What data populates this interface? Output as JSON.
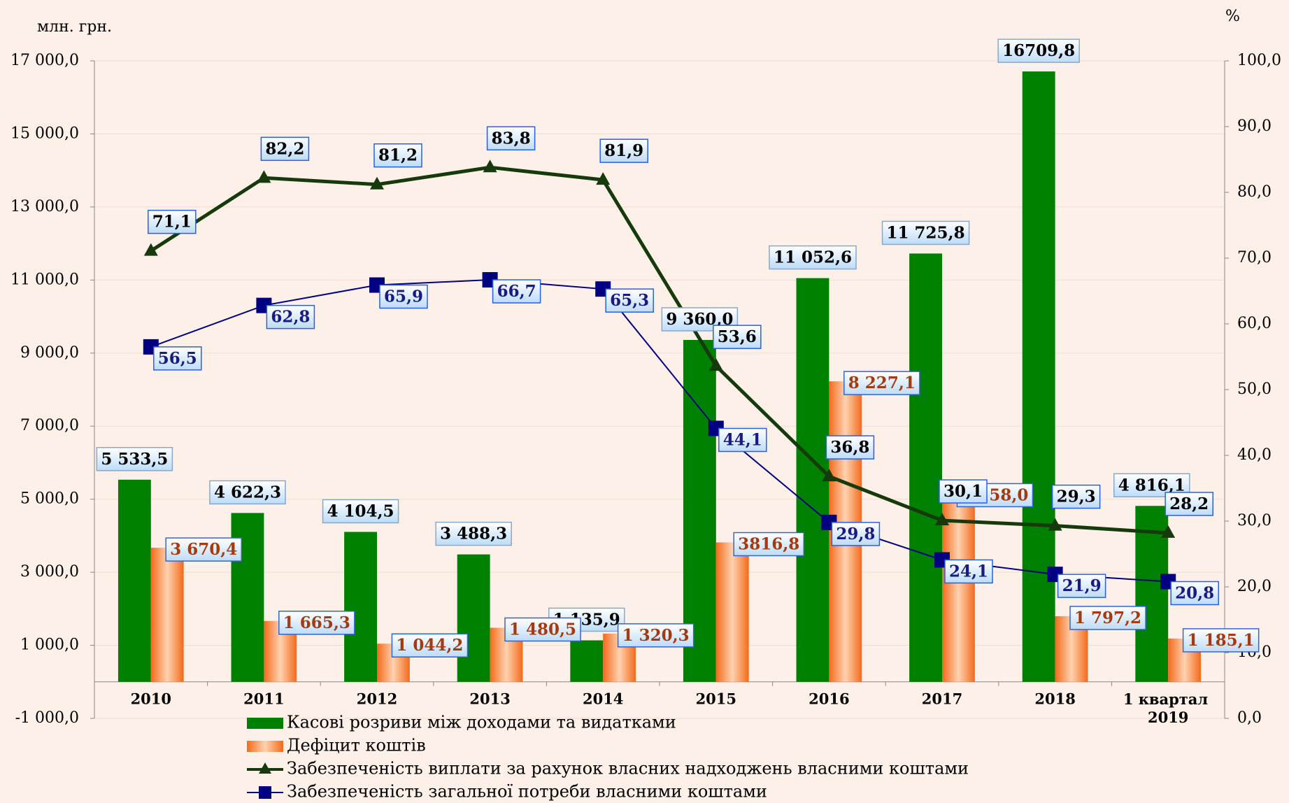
{
  "chart_data": {
    "type": "bar_line",
    "y_label": "млн. грн.",
    "y2_label": "%",
    "categories": [
      "2010",
      "2011",
      "2012",
      "2013",
      "2014",
      "2015",
      "2016",
      "2017",
      "2018",
      "1 квартал 2019"
    ],
    "ylim": [
      -1000,
      17000
    ],
    "yticks": [
      {
        "value": -1000,
        "label": "-1 000,0"
      },
      {
        "value": 1000,
        "label": "1 000,0"
      },
      {
        "value": 3000,
        "label": "3 000,0"
      },
      {
        "value": 5000,
        "label": "5 000,0"
      },
      {
        "value": 7000,
        "label": "7 000,0"
      },
      {
        "value": 9000,
        "label": "9 000,0"
      },
      {
        "value": 11000,
        "label": "11 000,0"
      },
      {
        "value": 13000,
        "label": "13 000,0"
      },
      {
        "value": 15000,
        "label": "15 000,0"
      },
      {
        "value": 17000,
        "label": "17 000,0"
      }
    ],
    "y2lim": [
      0,
      100
    ],
    "y2ticks": [
      {
        "value": 0,
        "label": "0,0"
      },
      {
        "value": 10,
        "label": "10,0"
      },
      {
        "value": 20,
        "label": "20,0"
      },
      {
        "value": 30,
        "label": "30,0"
      },
      {
        "value": 40,
        "label": "40,0"
      },
      {
        "value": 50,
        "label": "50,0"
      },
      {
        "value": 60,
        "label": "60,0"
      },
      {
        "value": 70,
        "label": "70,0"
      },
      {
        "value": 80,
        "label": "80,0"
      },
      {
        "value": 90,
        "label": "90,0"
      },
      {
        "value": 100,
        "label": "100,0"
      }
    ],
    "grid": true,
    "legend": "bottom",
    "series": [
      {
        "name": "Касові розриви між доходами та видатками",
        "type": "bar",
        "color": "#008000",
        "values": [
          5533.5,
          4622.3,
          4104.5,
          3488.3,
          1135.9,
          9360.0,
          11052.6,
          11725.8,
          16709.8,
          4816.1
        ],
        "value_labels": [
          "5 533,5",
          "4 622,3",
          "4 104,5",
          "3 488,3",
          "1 135,9",
          "9 360,0",
          "11 052,6",
          "11 725,8",
          "16709,8",
          "4 816,1"
        ]
      },
      {
        "name": "Дефіцит коштів",
        "type": "bar",
        "color": "#f57a2e",
        "values": [
          3670.4,
          1665.3,
          1044.2,
          1480.5,
          1320.3,
          3816.8,
          8227.1,
          5158.0,
          1797.2,
          1185.1
        ],
        "value_labels": [
          "3 670,4",
          "1 665,3",
          "1 044,2",
          "1 480,5",
          "1 320,3",
          "3816,8",
          "8 227,1",
          "5 158,0",
          "1 797,2",
          "1 185,1"
        ]
      },
      {
        "name": "Забезпеченість виплати за рахунок власних надходжень власними коштами",
        "type": "line",
        "axis": "y2",
        "color": "#163a0c",
        "values": [
          71.1,
          82.2,
          81.2,
          83.8,
          81.9,
          53.6,
          36.8,
          30.1,
          29.3,
          28.2
        ],
        "value_labels": [
          "71,1",
          "82,2",
          "81,2",
          "83,8",
          "81,9",
          "53,6",
          "36,8",
          "30,1",
          "29,3",
          "28,2"
        ]
      },
      {
        "name": "Забезпеченість загальної потреби  власними коштами",
        "type": "line",
        "axis": "y2",
        "color": "#000080",
        "values": [
          56.5,
          62.8,
          65.9,
          66.7,
          65.3,
          44.1,
          29.8,
          24.1,
          21.9,
          20.8
        ],
        "value_labels": [
          "56,5",
          "62,8",
          "65,9",
          "66,7",
          "65,3",
          "44,1",
          "29,8",
          "24,1",
          "21,9",
          "20,8"
        ]
      }
    ]
  }
}
